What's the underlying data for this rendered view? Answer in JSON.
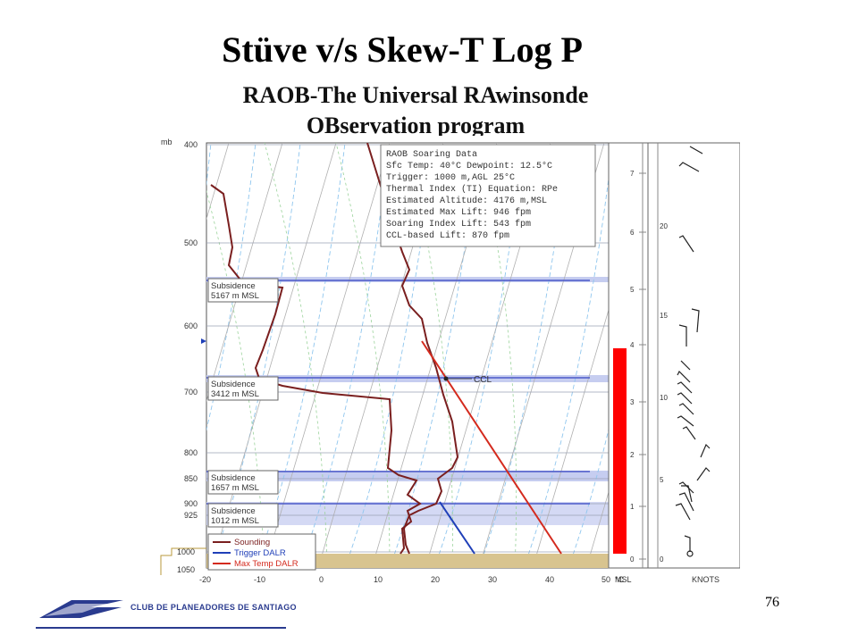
{
  "slide": {
    "title": "Stüve v/s Skew-T Log P",
    "subtitle_line1": "RAOB-The Universal RAwinsonde",
    "subtitle_line2": "OBservation program",
    "page_number": "76",
    "logo_text": "CLUB DE PLANEADORES DE SANTIAGO"
  },
  "chart_data": {
    "type": "line",
    "y_unit": "mb",
    "x_unit": "°C",
    "pressure_ticks": [
      "400",
      "500",
      "600",
      "700",
      "800",
      "850",
      "900",
      "925",
      "1000",
      "1050"
    ],
    "temp_ticks": [
      "-20",
      "-10",
      "0",
      "10",
      "20",
      "30",
      "40",
      "50"
    ],
    "msl_axis_label": "MSL",
    "msl_ticks": [
      "0",
      "1",
      "2",
      "3",
      "4",
      "5",
      "6",
      "7"
    ],
    "knots_axis_label": "KNOTS",
    "knots_ticks": [
      "0",
      "5",
      "10",
      "15",
      "20"
    ],
    "info_box": [
      "RAOB Soaring Data",
      "Sfc Temp: 40°C Dewpoint: 12.5°C",
      "Trigger: 1000 m,AGL   25°C",
      "Thermal Index (TI) Equation: RPe",
      "Estimated Altitude: 4176 m,MSL",
      "Estimated Max Lift: 946 fpm",
      "Soaring Index Lift: 543 fpm",
      "CCL-based Lift: 870 fpm"
    ],
    "subsidence_labels": [
      {
        "line1": "Subsidence",
        "line2": "5167 m MSL"
      },
      {
        "line1": "Subsidence",
        "line2": "3412 m MSL"
      },
      {
        "line1": "Subsidence",
        "line2": "1657 m MSL"
      },
      {
        "line1": "Subsidence",
        "line2": "1012 m MSL"
      }
    ],
    "ccl_label": "CCL",
    "legend": [
      "Sounding",
      "Trigger DALR",
      "Max Temp DALR"
    ],
    "colors": {
      "sounding": "#7a1f1f",
      "trigger_dalr": "#1f3fb8",
      "max_temp_dalr": "#d42a1e",
      "lift_bar": "#ff0000",
      "surface": "#d8c48f",
      "subsidence_band": "#c6cdf0"
    }
  }
}
